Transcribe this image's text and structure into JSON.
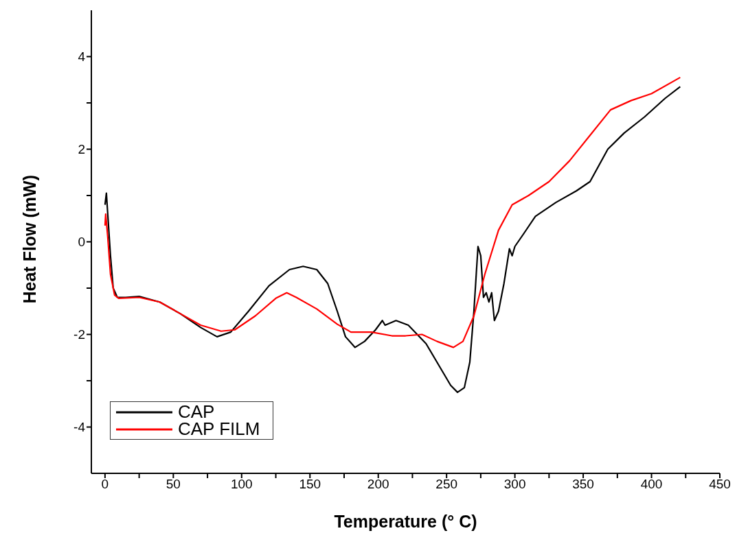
{
  "chart_data": {
    "type": "line",
    "xlabel": "Temperature (° C)",
    "ylabel": "Heat Flow (mW)",
    "xlim": [
      -10,
      450
    ],
    "ylim": [
      -5,
      5
    ],
    "xticks": [
      0,
      {
        "value": 25,
        "label": null
      },
      50,
      {
        "value": 75,
        "label": null
      },
      100,
      {
        "value": 125,
        "label": null
      },
      150,
      {
        "value": 175,
        "label": null
      },
      200,
      {
        "value": 225,
        "label": null
      },
      250,
      {
        "value": 275,
        "label": null
      },
      300,
      {
        "value": 325,
        "label": null
      },
      350,
      {
        "value": 375,
        "label": null
      },
      400,
      {
        "value": 425,
        "label": null
      },
      450
    ],
    "yticks": [
      -4,
      {
        "value": -3,
        "label": null
      },
      -2,
      {
        "value": -1,
        "label": null
      },
      0,
      {
        "value": 1,
        "label": null
      },
      2,
      {
        "value": 3,
        "label": null
      },
      4
    ],
    "grid": false,
    "legend": "bottom left",
    "marker": "none",
    "line_style": "solid",
    "series": [
      {
        "name": "CAP",
        "color": "#000000",
        "x": [
          0,
          1,
          2,
          4,
          6,
          9,
          15,
          25,
          40,
          55,
          70,
          82,
          92,
          105,
          120,
          135,
          145,
          155,
          163,
          170,
          176,
          183,
          190,
          198,
          203,
          205,
          213,
          222,
          235,
          245,
          253,
          258,
          263,
          267,
          270,
          273,
          275,
          277,
          279,
          281,
          283,
          285,
          288,
          292,
          296,
          298,
          300,
          307,
          315,
          330,
          345,
          355,
          368,
          380,
          395,
          410,
          421
        ],
        "values": [
          0.8,
          1.05,
          0.6,
          -0.3,
          -1.0,
          -1.2,
          -1.2,
          -1.18,
          -1.3,
          -1.55,
          -1.85,
          -2.05,
          -1.95,
          -1.5,
          -0.95,
          -0.6,
          -0.53,
          -0.6,
          -0.9,
          -1.5,
          -2.05,
          -2.28,
          -2.15,
          -1.9,
          -1.7,
          -1.8,
          -1.7,
          -1.8,
          -2.2,
          -2.7,
          -3.1,
          -3.25,
          -3.15,
          -2.6,
          -1.5,
          -0.1,
          -0.3,
          -1.2,
          -1.1,
          -1.3,
          -1.1,
          -1.7,
          -1.5,
          -0.9,
          -0.15,
          -0.3,
          -0.1,
          0.2,
          0.55,
          0.85,
          1.1,
          1.3,
          2.0,
          2.35,
          2.7,
          3.1,
          3.35
        ]
      },
      {
        "name": "CAP FILM",
        "color": "#ff0000",
        "x": [
          0,
          0.5,
          2,
          4,
          7,
          10,
          25,
          40,
          55,
          70,
          85,
          95,
          110,
          125,
          133,
          140,
          155,
          170,
          180,
          195,
          210,
          220,
          232,
          243,
          255,
          262,
          270,
          278,
          288,
          298,
          310,
          325,
          340,
          355,
          370,
          385,
          400,
          421
        ],
        "values": [
          0.35,
          0.6,
          0.1,
          -0.7,
          -1.15,
          -1.22,
          -1.2,
          -1.3,
          -1.55,
          -1.8,
          -1.93,
          -1.9,
          -1.6,
          -1.22,
          -1.1,
          -1.2,
          -1.45,
          -1.78,
          -1.95,
          -1.95,
          -2.03,
          -2.03,
          -2.0,
          -2.15,
          -2.28,
          -2.15,
          -1.6,
          -0.7,
          0.25,
          0.8,
          1.0,
          1.3,
          1.75,
          2.3,
          2.85,
          3.05,
          3.2,
          3.55
        ]
      }
    ]
  }
}
